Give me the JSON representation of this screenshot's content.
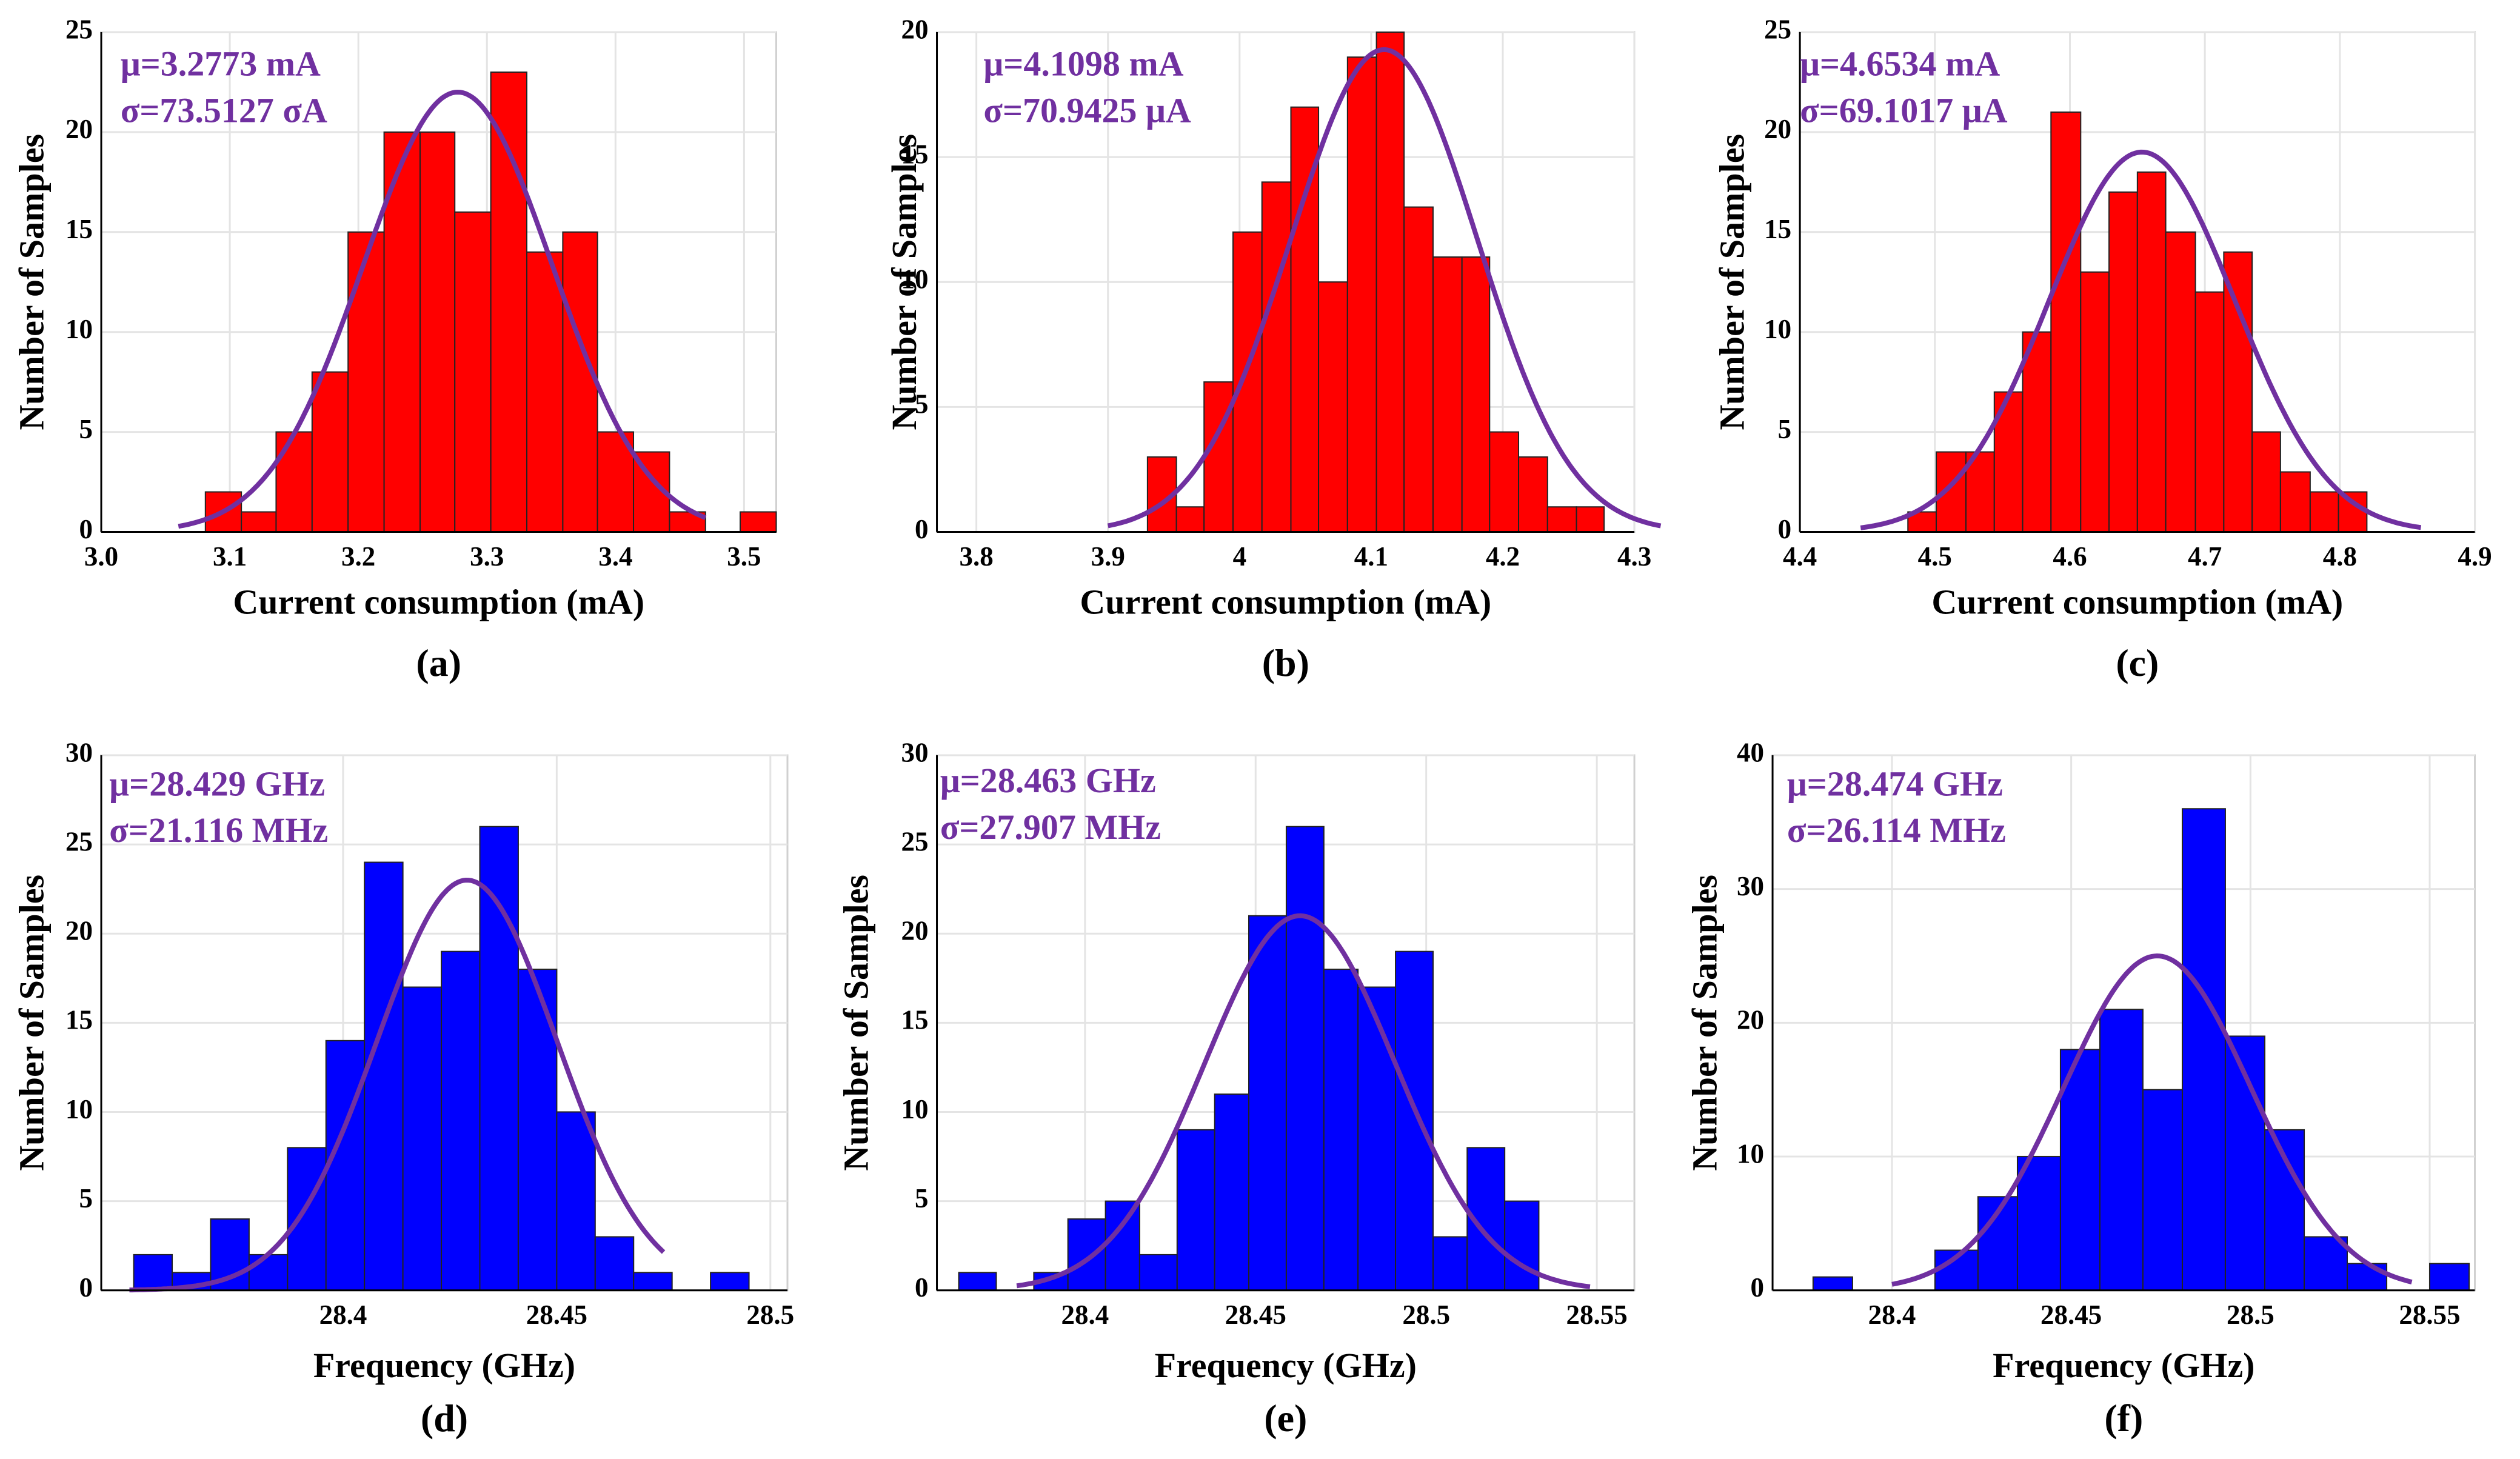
{
  "chart_data": [
    {
      "type": "histogram",
      "panel": "(a)",
      "xlabel": "Current consumption (mA)",
      "ylabel": "Number of Samples",
      "annotations": [
        "μ=3.2773  mA",
        "σ=73.5127  σA"
      ],
      "color": "#ff0000",
      "grid": true,
      "bins": [
        3.081,
        3.109,
        3.136,
        3.164,
        3.192,
        3.22,
        3.248,
        3.275,
        3.303,
        3.331,
        3.359,
        3.386,
        3.414,
        3.442,
        3.47,
        3.497,
        3.525
      ],
      "counts": [
        2,
        1,
        5,
        8,
        15,
        20,
        20,
        16,
        23,
        14,
        15,
        5,
        4,
        1,
        0,
        1
      ],
      "xlim": [
        3.0,
        3.525
      ],
      "xticks": [
        {
          "value": 3.0,
          "label": "3.0"
        },
        3.1,
        3.2,
        3.3,
        3.4,
        3.5
      ],
      "ylim": [
        0,
        25
      ],
      "yticks": [
        0,
        5,
        10,
        15,
        20,
        25
      ],
      "fit": {
        "mean": 3.2773,
        "std": 0.0735127,
        "peak": 22,
        "range": [
          3.06,
          3.47
        ],
        "color": "#7030a0"
      }
    },
    {
      "type": "histogram",
      "panel": "(b)",
      "xlabel": "Current consumption (mA)",
      "ylabel": "Number of Samples",
      "annotations": [
        "μ=4.1098  mA",
        "σ=70.9425  μA"
      ],
      "color": "#ff0000",
      "grid": true,
      "bins": [
        3.93,
        3.952,
        3.973,
        3.995,
        4.017,
        4.039,
        4.06,
        4.082,
        4.104,
        4.125,
        4.147,
        4.169,
        4.19,
        4.212,
        4.234,
        4.256,
        4.277
      ],
      "counts": [
        3,
        1,
        6,
        12,
        14,
        17,
        10,
        19,
        20,
        13,
        11,
        11,
        4,
        3,
        1,
        1
      ],
      "xlim": [
        3.77,
        4.3
      ],
      "xticks": [
        3.8,
        3.9,
        4,
        4.1,
        4.2,
        4.3
      ],
      "ylim": [
        0,
        20
      ],
      "yticks": [
        0,
        5,
        10,
        15,
        20
      ],
      "fit": {
        "mean": 4.1098,
        "std": 0.0709425,
        "peak": 19.3,
        "range": [
          3.9,
          4.32
        ],
        "color": "#7030a0"
      }
    },
    {
      "type": "histogram",
      "panel": "(c)",
      "xlabel": "Current consumption (mA)",
      "ylabel": "Number of Samples",
      "annotations": [
        "μ=4.6534  mA",
        "σ=69.1017  μA"
      ],
      "color": "#ff0000",
      "grid": true,
      "bins": [
        4.48,
        4.501,
        4.523,
        4.544,
        4.565,
        4.586,
        4.608,
        4.629,
        4.65,
        4.671,
        4.693,
        4.714,
        4.735,
        4.756,
        4.778,
        4.799,
        4.82
      ],
      "counts": [
        1,
        4,
        4,
        7,
        10,
        21,
        13,
        17,
        18,
        15,
        12,
        14,
        5,
        3,
        2,
        2
      ],
      "xlim": [
        4.4,
        4.9
      ],
      "xticks": [
        4.4,
        4.5,
        4.6,
        4.7,
        4.8,
        4.9
      ],
      "ylim": [
        0,
        25
      ],
      "yticks": [
        0,
        5,
        10,
        15,
        20,
        25
      ],
      "fit": {
        "mean": 4.6534,
        "std": 0.0691017,
        "peak": 19,
        "range": [
          4.445,
          4.86
        ],
        "color": "#7030a0"
      }
    },
    {
      "type": "histogram",
      "panel": "(d)",
      "xlabel": "Frequency (GHz)",
      "ylabel": "Number of Samples",
      "annotations": [
        "μ=28.429  GHz",
        "σ=21.116  MHz"
      ],
      "color": "#0000ff",
      "grid": true,
      "bins": [
        28.351,
        28.36,
        28.369,
        28.378,
        28.387,
        28.396,
        28.405,
        28.414,
        28.423,
        28.432,
        28.441,
        28.45,
        28.459,
        28.468,
        28.477,
        28.486,
        28.495
      ],
      "counts": [
        2,
        1,
        4,
        2,
        8,
        14,
        24,
        17,
        19,
        26,
        18,
        10,
        3,
        1,
        0,
        1
      ],
      "xlim": [
        28.3434,
        28.504
      ],
      "xticks": [
        28.4,
        28.45,
        28.5
      ],
      "ylim": [
        0,
        30
      ],
      "yticks": [
        0,
        5,
        10,
        15,
        20,
        25,
        30
      ],
      "fit": {
        "mean": 28.429,
        "std": 0.021116,
        "peak": 23,
        "range": [
          28.35,
          28.475
        ],
        "color": "#7030a0"
      }
    },
    {
      "type": "histogram",
      "panel": "(e)",
      "xlabel": "Frequency (GHz)",
      "ylabel": "Number of Samples",
      "annotations": [
        "μ=28.463  GHz",
        "σ=27.907  MHz"
      ],
      "color": "#0000ff",
      "grid": true,
      "bins": [
        28.363,
        28.374,
        28.385,
        28.395,
        28.406,
        28.416,
        28.427,
        28.438,
        28.448,
        28.459,
        28.47,
        28.48,
        28.491,
        28.502,
        28.512,
        28.523,
        28.533
      ],
      "counts": [
        1,
        0,
        1,
        4,
        5,
        2,
        9,
        11,
        21,
        26,
        18,
        17,
        19,
        3,
        8,
        5
      ],
      "xlim": [
        28.3566,
        28.561
      ],
      "xticks": [
        28.4,
        28.45,
        28.5,
        28.55
      ],
      "ylim": [
        0,
        30
      ],
      "yticks": [
        0,
        5,
        10,
        15,
        20,
        25,
        30
      ],
      "fit": {
        "mean": 28.463,
        "std": 0.027907,
        "peak": 21,
        "range": [
          28.38,
          28.548
        ],
        "color": "#7030a0"
      }
    },
    {
      "type": "histogram",
      "panel": "(f)",
      "xlabel": "Frequency (GHz)",
      "ylabel": "Number of Samples",
      "annotations": [
        "μ=28.474 GHz",
        "σ=26.114 MHz"
      ],
      "color": "#0000ff",
      "grid": true,
      "bins": [
        28.378,
        28.389,
        28.401,
        28.412,
        28.424,
        28.435,
        28.447,
        28.458,
        28.47,
        28.481,
        28.493,
        28.504,
        28.515,
        28.527,
        28.538,
        28.55,
        28.561
      ],
      "counts": [
        1,
        0,
        0,
        3,
        7,
        10,
        18,
        21,
        15,
        36,
        19,
        12,
        4,
        2,
        0,
        2
      ],
      "xlim": [
        28.3667,
        28.5626
      ],
      "xticks": [
        28.4,
        28.45,
        28.5,
        28.55
      ],
      "ylim": [
        0,
        40
      ],
      "yticks": [
        0,
        10,
        20,
        30,
        40
      ],
      "fit": {
        "mean": 28.474,
        "std": 0.026114,
        "peak": 25,
        "range": [
          28.4,
          28.545
        ],
        "color": "#7030a0"
      }
    }
  ]
}
